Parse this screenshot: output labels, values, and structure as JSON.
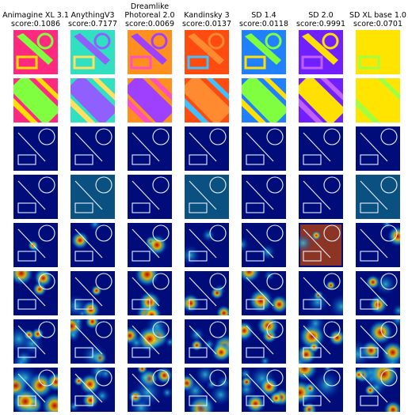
{
  "columns": [
    {
      "lines": [
        "Animagine XL 3.1",
        "score:0.1086"
      ]
    },
    {
      "lines": [
        "AnythingV3",
        "score:0.7177"
      ]
    },
    {
      "lines": [
        "Dreamlike",
        "Photoreal 2.0",
        "score:0.0069"
      ]
    },
    {
      "lines": [
        "Kandinsky 3",
        "score:0.0137"
      ]
    },
    {
      "lines": [
        "SD 1.4",
        "score:0.0118"
      ]
    },
    {
      "lines": [
        "SD 2.0",
        "score:0.9991"
      ]
    },
    {
      "lines": [
        "SD XL base 1.0",
        "score:0.0701"
      ]
    }
  ]
}
